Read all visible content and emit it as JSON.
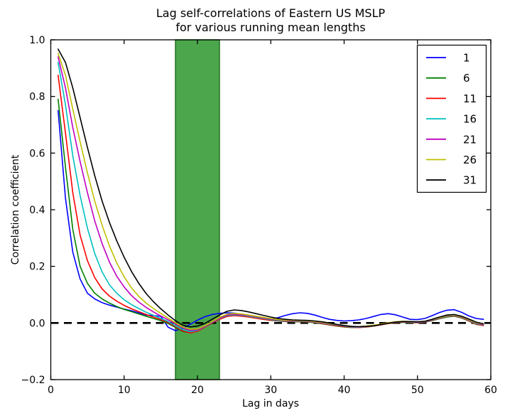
{
  "figure": {
    "background": "#ffffff",
    "spine_color": "#000000"
  },
  "chart_data": {
    "type": "line",
    "title": "Lag self-correlations of Eastern US MSLP\nfor various running mean lengths",
    "title_lines": [
      "Lag self-correlations of Eastern US MSLP",
      "for various running mean lengths"
    ],
    "xlabel": "Lag in days",
    "ylabel": "Correlation coefficient",
    "xlim": [
      0,
      60
    ],
    "ylim": [
      -0.2,
      1.0
    ],
    "xticks": [
      0,
      10,
      20,
      30,
      40,
      50,
      60
    ],
    "xtick_labels": [
      "0",
      "10",
      "20",
      "30",
      "40",
      "50",
      "60"
    ],
    "yticks": [
      -0.2,
      0.0,
      0.2,
      0.4,
      0.6,
      0.8,
      1.0
    ],
    "ytick_labels": [
      "−0.2",
      "0.0",
      "0.2",
      "0.4",
      "0.6",
      "0.8",
      "1.0"
    ],
    "grid": false,
    "legend_position": "upper right",
    "highlight_band": {
      "x_start": 17,
      "x_end": 23,
      "fill": "#008000",
      "alpha": 0.7,
      "edge": "#1a6b1a"
    },
    "zero_line": {
      "y": 0.0,
      "style": "dashed",
      "color": "#000000",
      "width": 2.6
    },
    "x": [
      1,
      2,
      3,
      4,
      5,
      6,
      7,
      8,
      9,
      10,
      11,
      12,
      13,
      14,
      15,
      16,
      17,
      18,
      19,
      20,
      21,
      22,
      23,
      24,
      25,
      26,
      27,
      28,
      29,
      30,
      31,
      32,
      33,
      34,
      35,
      36,
      37,
      38,
      39,
      40,
      41,
      42,
      43,
      44,
      45,
      46,
      47,
      48,
      49,
      50,
      51,
      52,
      53,
      54,
      55,
      56,
      57,
      58,
      59
    ],
    "series": [
      {
        "name": "1",
        "color": "#0000ff",
        "values": [
          0.75,
          0.44,
          0.25,
          0.155,
          0.105,
          0.085,
          0.072,
          0.063,
          0.056,
          0.049,
          0.043,
          0.036,
          0.028,
          0.026,
          0.024,
          -0.015,
          -0.027,
          -0.018,
          -0.005,
          0.01,
          0.022,
          0.03,
          0.034,
          0.036,
          0.035,
          0.031,
          0.025,
          0.018,
          0.014,
          0.014,
          0.019,
          0.027,
          0.033,
          0.036,
          0.034,
          0.028,
          0.02,
          0.013,
          0.009,
          0.007,
          0.008,
          0.011,
          0.016,
          0.023,
          0.03,
          0.033,
          0.029,
          0.021,
          0.013,
          0.012,
          0.016,
          0.026,
          0.037,
          0.045,
          0.047,
          0.038,
          0.025,
          0.016,
          0.013
        ]
      },
      {
        "name": "6",
        "color": "#007f00",
        "values": [
          0.79,
          0.55,
          0.33,
          0.2,
          0.14,
          0.105,
          0.085,
          0.07,
          0.058,
          0.048,
          0.04,
          0.032,
          0.024,
          0.016,
          0.008,
          -0.002,
          -0.016,
          -0.03,
          -0.034,
          -0.027,
          -0.013,
          0.002,
          0.015,
          0.024,
          0.027,
          0.025,
          0.021,
          0.017,
          0.013,
          0.009,
          0.007,
          0.005,
          0.004,
          0.004,
          0.003,
          0.001,
          -0.003,
          -0.007,
          -0.011,
          -0.014,
          -0.016,
          -0.016,
          -0.014,
          -0.011,
          -0.006,
          -0.002,
          0.001,
          0.002,
          0.001,
          0.001,
          0.003,
          0.008,
          0.015,
          0.021,
          0.024,
          0.018,
          0.007,
          -0.005,
          -0.009
        ]
      },
      {
        "name": "11",
        "color": "#ff0000",
        "values": [
          0.875,
          0.67,
          0.46,
          0.31,
          0.22,
          0.16,
          0.12,
          0.095,
          0.077,
          0.062,
          0.05,
          0.04,
          0.03,
          0.021,
          0.012,
          0.002,
          -0.013,
          -0.028,
          -0.035,
          -0.029,
          -0.015,
          0.0,
          0.013,
          0.023,
          0.026,
          0.024,
          0.021,
          0.017,
          0.013,
          0.01,
          0.008,
          0.006,
          0.005,
          0.005,
          0.004,
          0.002,
          -0.002,
          -0.006,
          -0.01,
          -0.013,
          -0.015,
          -0.016,
          -0.014,
          -0.011,
          -0.007,
          -0.002,
          0.001,
          0.003,
          0.002,
          0.001,
          0.003,
          0.009,
          0.016,
          0.023,
          0.025,
          0.019,
          0.008,
          -0.004,
          -0.009
        ]
      },
      {
        "name": "16",
        "color": "#00bfbf",
        "values": [
          0.92,
          0.77,
          0.59,
          0.45,
          0.335,
          0.245,
          0.18,
          0.135,
          0.105,
          0.082,
          0.065,
          0.051,
          0.038,
          0.027,
          0.016,
          0.005,
          -0.01,
          -0.024,
          -0.031,
          -0.026,
          -0.013,
          0.002,
          0.016,
          0.026,
          0.029,
          0.027,
          0.024,
          0.02,
          0.016,
          0.012,
          0.009,
          0.007,
          0.006,
          0.006,
          0.005,
          0.003,
          0.0,
          -0.004,
          -0.008,
          -0.011,
          -0.014,
          -0.015,
          -0.013,
          -0.01,
          -0.006,
          -0.001,
          0.002,
          0.004,
          0.003,
          0.002,
          0.004,
          0.01,
          0.017,
          0.024,
          0.026,
          0.02,
          0.01,
          -0.002,
          -0.007
        ]
      },
      {
        "name": "21",
        "color": "#bf00bf",
        "values": [
          0.94,
          0.83,
          0.69,
          0.57,
          0.46,
          0.36,
          0.28,
          0.215,
          0.165,
          0.127,
          0.097,
          0.074,
          0.055,
          0.039,
          0.025,
          0.011,
          -0.003,
          -0.017,
          -0.026,
          -0.024,
          -0.012,
          0.003,
          0.017,
          0.028,
          0.031,
          0.029,
          0.026,
          0.022,
          0.018,
          0.014,
          0.011,
          0.008,
          0.007,
          0.007,
          0.006,
          0.004,
          0.001,
          -0.003,
          -0.007,
          -0.01,
          -0.013,
          -0.014,
          -0.012,
          -0.009,
          -0.005,
          0.0,
          0.003,
          0.005,
          0.004,
          0.003,
          0.005,
          0.011,
          0.018,
          0.025,
          0.027,
          0.021,
          0.011,
          0.0,
          -0.006
        ]
      },
      {
        "name": "26",
        "color": "#bfbf00",
        "values": [
          0.952,
          0.875,
          0.755,
          0.64,
          0.53,
          0.43,
          0.345,
          0.272,
          0.212,
          0.163,
          0.124,
          0.094,
          0.07,
          0.051,
          0.034,
          0.017,
          0.001,
          -0.014,
          -0.022,
          -0.021,
          -0.01,
          0.005,
          0.02,
          0.031,
          0.034,
          0.032,
          0.028,
          0.024,
          0.02,
          0.016,
          0.012,
          0.01,
          0.009,
          0.008,
          0.007,
          0.005,
          0.002,
          -0.002,
          -0.006,
          -0.009,
          -0.012,
          -0.013,
          -0.011,
          -0.008,
          -0.004,
          0.001,
          0.004,
          0.006,
          0.005,
          0.004,
          0.006,
          0.012,
          0.019,
          0.026,
          0.028,
          0.022,
          0.012,
          0.001,
          -0.004
        ]
      },
      {
        "name": "31",
        "color": "#000000",
        "values": [
          0.967,
          0.92,
          0.83,
          0.725,
          0.62,
          0.52,
          0.43,
          0.355,
          0.29,
          0.232,
          0.182,
          0.14,
          0.104,
          0.075,
          0.05,
          0.028,
          0.008,
          -0.008,
          -0.014,
          -0.011,
          -0.002,
          0.013,
          0.028,
          0.041,
          0.046,
          0.044,
          0.039,
          0.033,
          0.027,
          0.021,
          0.016,
          0.013,
          0.011,
          0.01,
          0.009,
          0.007,
          0.004,
          0.0,
          -0.005,
          -0.009,
          -0.012,
          -0.013,
          -0.012,
          -0.01,
          -0.006,
          -0.001,
          0.003,
          0.005,
          0.005,
          0.004,
          0.006,
          0.013,
          0.021,
          0.028,
          0.03,
          0.024,
          0.014,
          0.003,
          -0.003
        ]
      }
    ]
  }
}
